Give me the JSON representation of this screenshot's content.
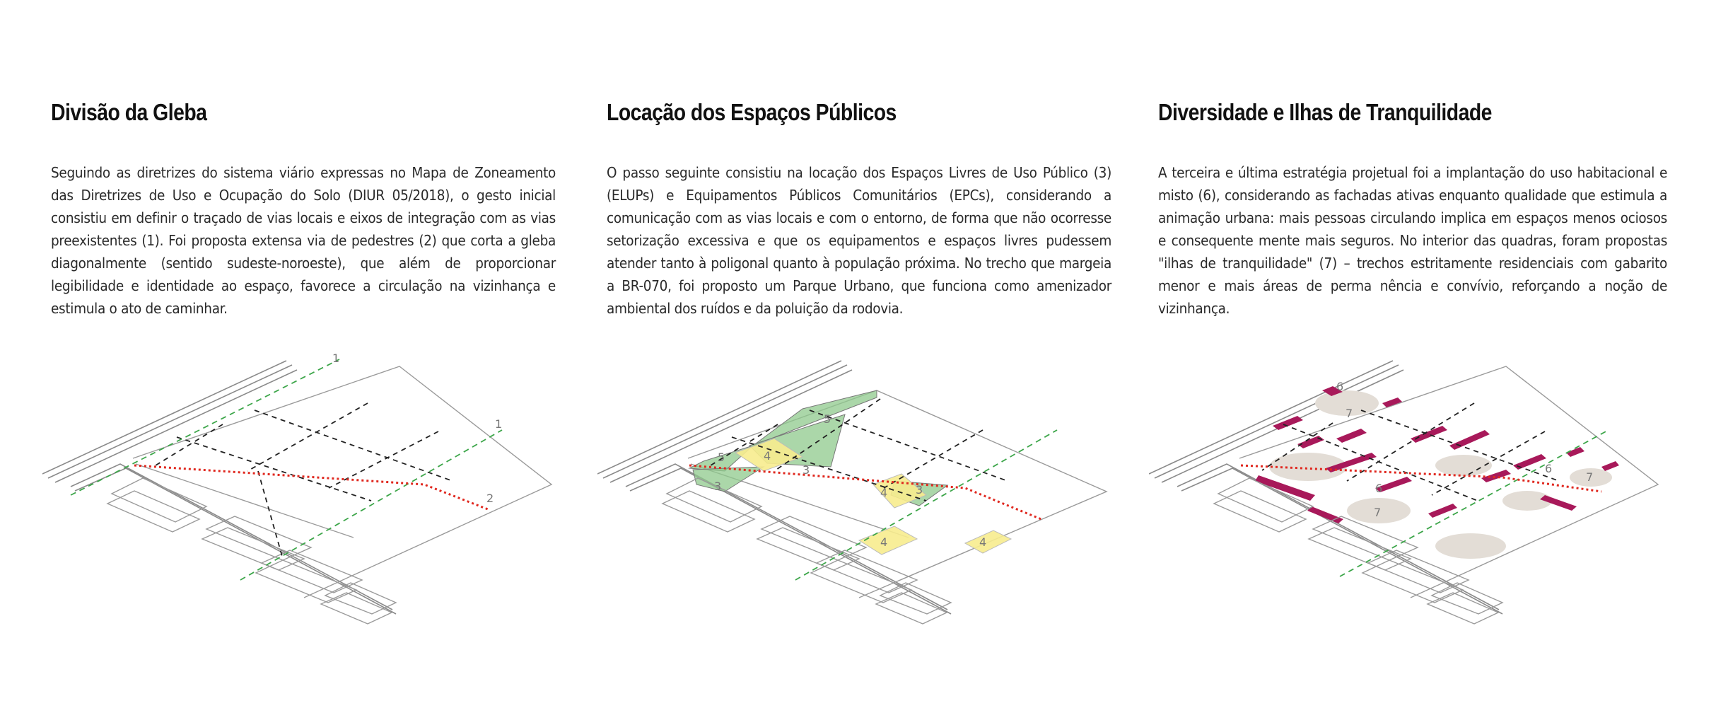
{
  "sections": [
    {
      "title": "Divisão da Gleba",
      "text": "Seguindo as diretrizes do sistema viário expressas no Mapa de Zoneamento das Diretrizes de Uso e Ocupação do Solo (DIUR 05/2018), o gesto inicial consistiu em definir o traçado de vias locais e eixos de integração com as vias preexistentes (1). Foi proposta extensa via de pedestres (2) que corta a gleba diagonalmente (sentido sudeste-noroeste), que além de proporcionar legibilidade e identidade ao espaço, favorece a circulação na vizinhança e estimula o ato de caminhar.",
      "labels": [
        "1",
        "1",
        "2"
      ]
    },
    {
      "title": "Locação dos Espaços Públicos",
      "text": "O passo seguinte consistiu na locação dos Espaços Livres de Uso Público (3) (ELUPs) e Equipamentos Públicos Comunitários (EPCs), considerando a comunicação com as vias locais e com o entorno, de forma que não ocorresse setorização excessiva e que os equipamentos e espaços livres pudessem atender tanto à poligonal quanto à população próxima. No trecho que margeia a BR-070, foi proposto um Parque Urbano, que funciona como amenizador ambiental dos ruídos e da poluição da rodovia.",
      "labels": [
        "5",
        "5",
        "4",
        "3",
        "3",
        "4",
        "3",
        "4",
        "4"
      ]
    },
    {
      "title": "Diversidade e Ilhas de Tranquilidade",
      "text": "A terceira e última estratégia projetual foi a implantação do uso habitacional e misto (6), considerando as fachadas ativas enquanto qualidade que estimula a animação urbana: mais pessoas circulando implica em espaços menos ociosos e consequente mente mais seguros. No interior das quadras, foram propostas \"ilhas de tranquilidade\" (7) – trechos estritamente residenciais com gabarito menor e mais áreas de perma nência e convívio, reforçando a noção de vizinhança.",
      "labels": [
        "6",
        "7",
        "6",
        "7",
        "6",
        "7"
      ]
    }
  ],
  "colors": {
    "pedestrian_route": "#e0281f",
    "integration_axis": "#3da64a",
    "elup": "#8fca8c",
    "epc": "#f7ec8e",
    "housing": "#a8195a",
    "tranquility": "#e3ddd6"
  }
}
